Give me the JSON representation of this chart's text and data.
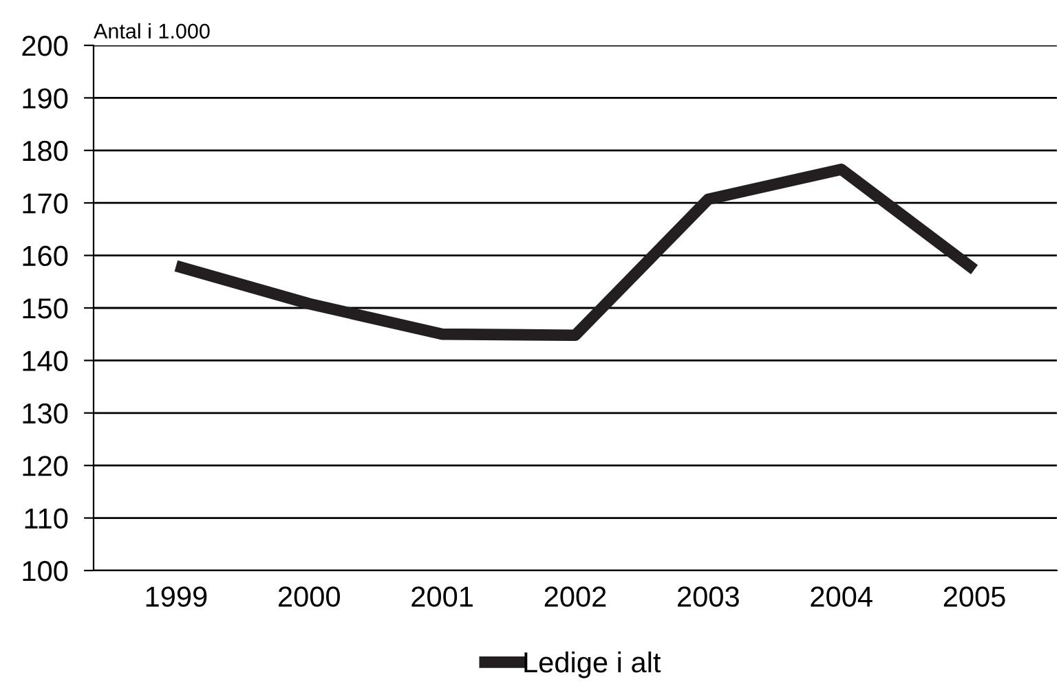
{
  "chart_data": {
    "type": "line",
    "ylabel": "Antal i 1.000",
    "categories": [
      "1999",
      "2000",
      "2001",
      "2002",
      "2003",
      "2004",
      "2005"
    ],
    "series": [
      {
        "name": "Ledige i alt",
        "color": "#231f20",
        "values": [
          158,
          150.8,
          145,
          144.8,
          170.7,
          176.4,
          157.3
        ]
      }
    ],
    "ylim": [
      100,
      200
    ],
    "yticks": [
      100,
      110,
      120,
      130,
      140,
      150,
      160,
      170,
      180,
      190,
      200
    ],
    "grid": "y",
    "legend": "bottom",
    "marker": "none",
    "line_style": "solid"
  }
}
